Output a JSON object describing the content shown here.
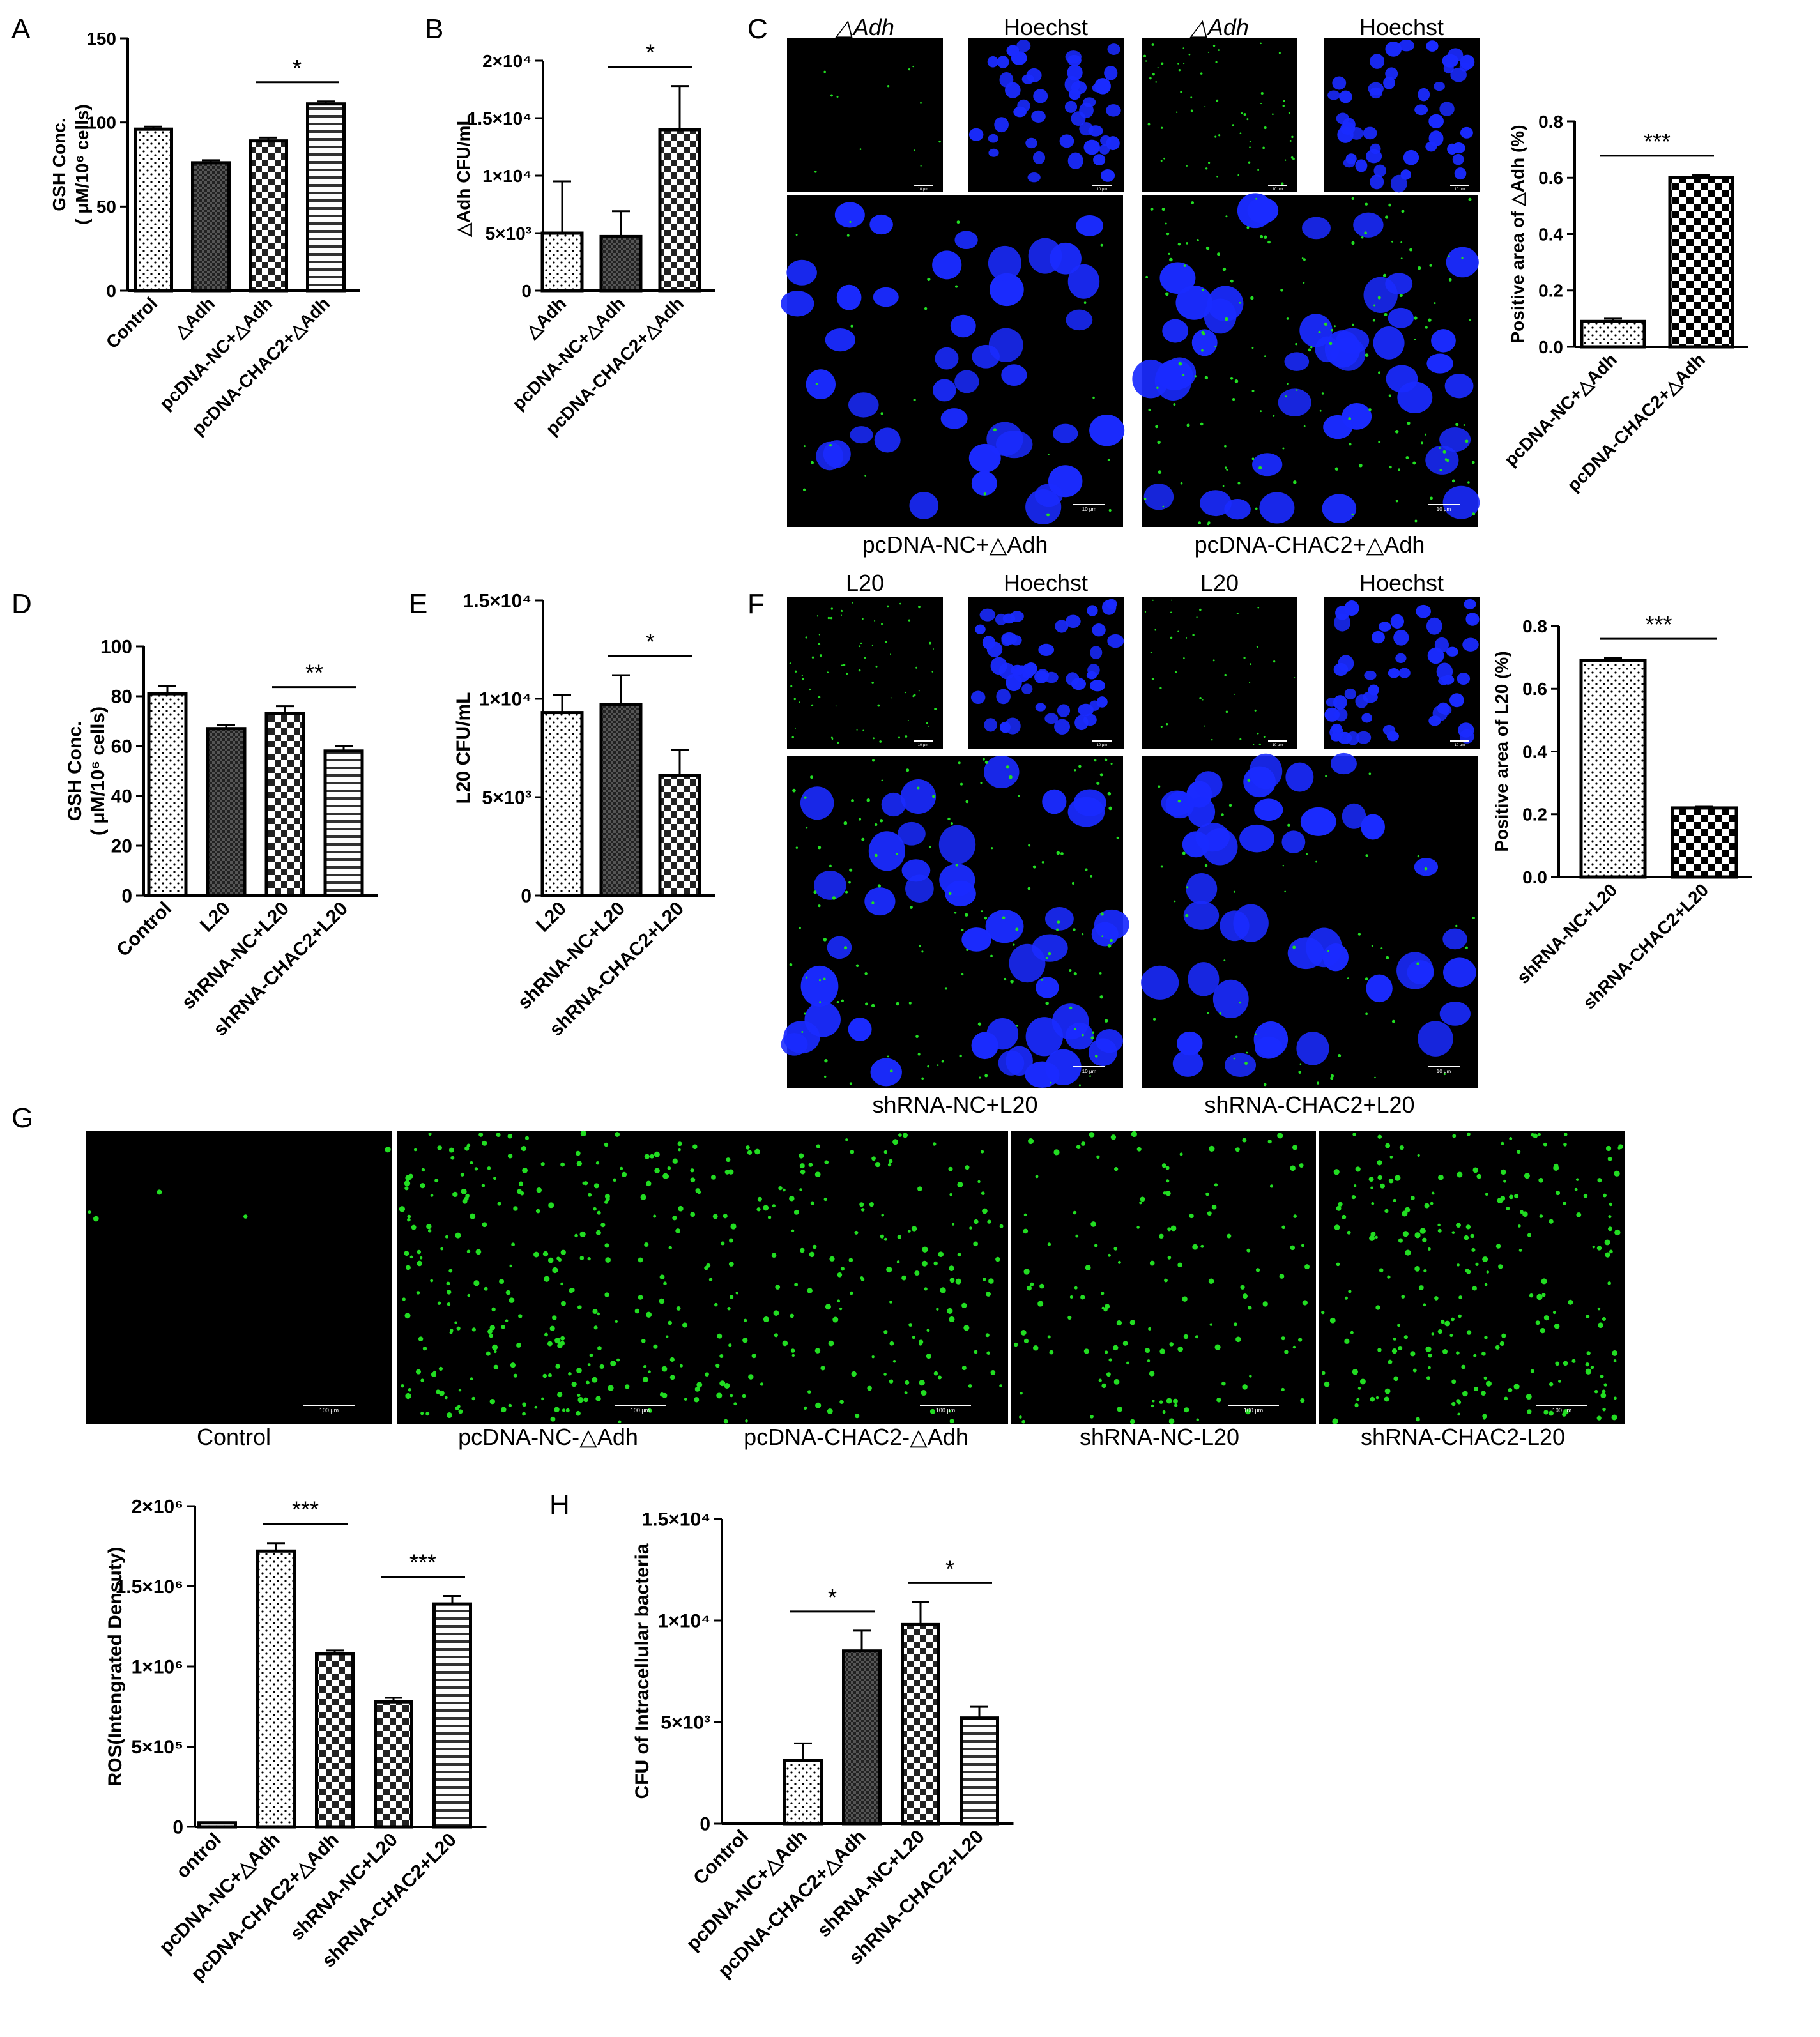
{
  "figure": {
    "panels": [
      {
        "id": "A",
        "letter": "A"
      },
      {
        "id": "B",
        "letter": "B"
      },
      {
        "id": "C",
        "letter": "C"
      },
      {
        "id": "D",
        "letter": "D"
      },
      {
        "id": "E",
        "letter": "E"
      },
      {
        "id": "F",
        "letter": "F"
      },
      {
        "id": "G",
        "letter": "G"
      },
      {
        "id": "H",
        "letter": "H"
      }
    ],
    "micro_C": {
      "header_labels": [
        "△Adh",
        "Hoechst",
        "△Adh",
        "Hoechst"
      ],
      "group_labels": [
        "pcDNA-NC+△Adh",
        "pcDNA-CHAC2+△Adh"
      ],
      "scale_text": "10 μm"
    },
    "micro_F": {
      "header_labels": [
        "L20",
        "Hoechst",
        "L20",
        "Hoechst"
      ],
      "group_labels": [
        "shRNA-NC+L20",
        "shRNA-CHAC2+L20"
      ],
      "scale_text": "10 μm"
    },
    "micro_G": {
      "labels": [
        "Control",
        "pcDNA-NC-△Adh",
        "pcDNA-CHAC2-△Adh",
        "shRNA-NC-L20",
        "shRNA-CHAC2-L20"
      ],
      "scale_text": "100 μm",
      "relative_intensity": [
        0.02,
        1.0,
        0.7,
        0.55,
        0.9
      ]
    },
    "colors": {
      "nuclei": "#1a2bff",
      "bacteria": "#22dd22",
      "background": "#000000"
    }
  },
  "chart_data": [
    {
      "id": "A",
      "type": "bar",
      "categories": [
        "Control",
        "△Adh",
        "pcDNA-NC+△Adh",
        "pcDNA-CHAC2+△Adh"
      ],
      "values": [
        96,
        76,
        89,
        111
      ],
      "errors": [
        1.5,
        1.5,
        2,
        1.5
      ],
      "yticks": [
        {
          "v": 0,
          "label": "0"
        },
        {
          "v": 50,
          "label": "50"
        },
        {
          "v": 100,
          "label": "100"
        },
        {
          "v": 150,
          "label": "150"
        }
      ],
      "ylim": [
        0,
        150
      ],
      "ylabel_lines": [
        "GSH Conc.",
        "( μM/10⁶ cells)"
      ],
      "fills": [
        "dots",
        "dense",
        "checker",
        "hlines"
      ],
      "sig": [
        {
          "from": 2,
          "to": 3,
          "label": "*"
        }
      ]
    },
    {
      "id": "B",
      "type": "bar",
      "categories": [
        "△Adh",
        "pcDNA-NC+△Adh",
        "pcDNA-CHAC2+△Adh"
      ],
      "values": [
        5000,
        4700,
        14000
      ],
      "errors": [
        4500,
        2200,
        3800
      ],
      "yticks": [
        {
          "v": 0,
          "label": "0"
        },
        {
          "v": 5000,
          "label": "5×10³"
        },
        {
          "v": 10000,
          "label": "1×10⁴"
        },
        {
          "v": 15000,
          "label": "1.5×10⁴"
        },
        {
          "v": 20000,
          "label": "2×10⁴"
        }
      ],
      "ylim": [
        0,
        20000
      ],
      "ylabel_lines": [
        "△Adh  CFU/mL"
      ],
      "fills": [
        "dots",
        "dense",
        "checker"
      ],
      "sig": [
        {
          "from": 1,
          "to": 2,
          "label": "*"
        }
      ]
    },
    {
      "id": "C",
      "type": "bar",
      "categories": [
        "pcDNA-NC+△Adh",
        "pcDNA-CHAC2+△Adh"
      ],
      "values": [
        0.09,
        0.6
      ],
      "errors": [
        0.01,
        0.01
      ],
      "yticks": [
        {
          "v": 0,
          "label": "0.0"
        },
        {
          "v": 0.2,
          "label": "0.2"
        },
        {
          "v": 0.4,
          "label": "0.4"
        },
        {
          "v": 0.6,
          "label": "0.6"
        },
        {
          "v": 0.8,
          "label": "0.8"
        }
      ],
      "ylim": [
        0,
        0.8
      ],
      "ylabel_lines": [
        "Positive area of △Adh (%)"
      ],
      "fills": [
        "dots",
        "checkerbold"
      ],
      "sig": [
        {
          "from": 0,
          "to": 1,
          "label": "***"
        }
      ]
    },
    {
      "id": "D",
      "type": "bar",
      "categories": [
        "Control",
        "L20",
        "shRNA-NC+L20",
        "shRNA-CHAC2+L20"
      ],
      "values": [
        81,
        67,
        73,
        58
      ],
      "errors": [
        3,
        1.5,
        3,
        2
      ],
      "yticks": [
        {
          "v": 0,
          "label": "0"
        },
        {
          "v": 20,
          "label": "20"
        },
        {
          "v": 40,
          "label": "40"
        },
        {
          "v": 60,
          "label": "60"
        },
        {
          "v": 80,
          "label": "80"
        },
        {
          "v": 100,
          "label": "100"
        }
      ],
      "ylim": [
        0,
        100
      ],
      "ylabel_lines": [
        "GSH Conc.",
        "( μM/10⁶ cells)"
      ],
      "fills": [
        "dots",
        "dense",
        "checker",
        "hlines"
      ],
      "sig": [
        {
          "from": 2,
          "to": 3,
          "label": "**"
        }
      ]
    },
    {
      "id": "E",
      "type": "bar",
      "categories": [
        "L20",
        "shRNA-NC+L20",
        "shRNA-CHAC2+L20"
      ],
      "values": [
        9300,
        9700,
        6100
      ],
      "errors": [
        900,
        1500,
        1300
      ],
      "yticks": [
        {
          "v": 0,
          "label": "0"
        },
        {
          "v": 5000,
          "label": "5×10³"
        },
        {
          "v": 10000,
          "label": "1×10⁴"
        },
        {
          "v": 15000,
          "label": "1.5×10⁴"
        }
      ],
      "ylim": [
        0,
        15000
      ],
      "ylabel_lines": [
        "L20 CFU/mL"
      ],
      "fills": [
        "dots",
        "dense",
        "checker"
      ],
      "sig": [
        {
          "from": 1,
          "to": 2,
          "label": "*"
        }
      ]
    },
    {
      "id": "F",
      "type": "bar",
      "categories": [
        "shRNA-NC+L20",
        "shRNA-CHAC2+L20"
      ],
      "values": [
        0.69,
        0.22
      ],
      "errors": [
        0.008,
        0.004
      ],
      "yticks": [
        {
          "v": 0,
          "label": "0.0"
        },
        {
          "v": 0.2,
          "label": "0.2"
        },
        {
          "v": 0.4,
          "label": "0.4"
        },
        {
          "v": 0.6,
          "label": "0.6"
        },
        {
          "v": 0.8,
          "label": "0.8"
        }
      ],
      "ylim": [
        0,
        0.8
      ],
      "ylabel_lines": [
        "Positive area of L20 (%)"
      ],
      "fills": [
        "dots",
        "checkerbold"
      ],
      "sig": [
        {
          "from": 0,
          "to": 1,
          "label": "***"
        }
      ]
    },
    {
      "id": "G",
      "type": "bar",
      "categories": [
        "ontrol",
        "pcDNA-NC+△Adh",
        "pcDNA-CHAC2+△Adh",
        "shRNA-NC+L20",
        "shRNA-CHAC2+L20"
      ],
      "values": [
        25000,
        1720000,
        1080000,
        780000,
        1390000
      ],
      "errors": [
        3000,
        50000,
        20000,
        25000,
        50000
      ],
      "yticks": [
        {
          "v": 0,
          "label": "0"
        },
        {
          "v": 500000,
          "label": "5×10⁵"
        },
        {
          "v": 1000000,
          "label": "1×10⁶"
        },
        {
          "v": 1500000,
          "label": "1.5×10⁶"
        },
        {
          "v": 2000000,
          "label": "2×10⁶"
        }
      ],
      "ylim": [
        0,
        2000000
      ],
      "ylabel_lines": [
        "ROS(Intengrated Densuty)"
      ],
      "fills": [
        "dots",
        "dots",
        "checker",
        "checker",
        "hlines"
      ],
      "sig": [
        {
          "from": 1,
          "to": 2,
          "label": "***"
        },
        {
          "from": 3,
          "to": 4,
          "label": "***"
        }
      ]
    },
    {
      "id": "H",
      "type": "bar",
      "categories": [
        "Control",
        "pcDNA-NC+△Adh",
        "pcDNA-CHAC2+△Adh",
        "shRNA-NC+L20",
        "shRNA-CHAC2+L20"
      ],
      "values": [
        0,
        3100,
        8500,
        9800,
        5200
      ],
      "errors": [
        0,
        850,
        1000,
        1100,
        550
      ],
      "yticks": [
        {
          "v": 0,
          "label": "0"
        },
        {
          "v": 5000,
          "label": "5×10³"
        },
        {
          "v": 10000,
          "label": "1×10⁴"
        },
        {
          "v": 15000,
          "label": "1.5×10⁴"
        }
      ],
      "ylim": [
        0,
        15000
      ],
      "ylabel_lines": [
        "CFU of Intracellular bacteria"
      ],
      "fills": [
        "dots",
        "dots",
        "dense",
        "checker",
        "hlines"
      ],
      "sig": [
        {
          "from": 1,
          "to": 2,
          "label": "*"
        },
        {
          "from": 3,
          "to": 4,
          "label": "*"
        }
      ]
    }
  ]
}
